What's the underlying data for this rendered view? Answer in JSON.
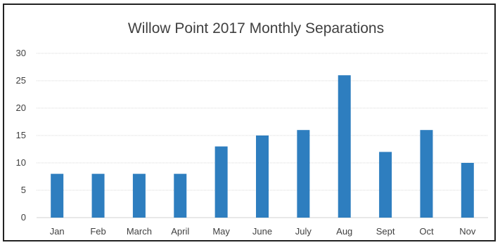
{
  "chart_data": {
    "type": "bar",
    "title": "Willow Point 2017 Monthly Separations",
    "xlabel": "",
    "ylabel": "",
    "categories": [
      "Jan",
      "Feb",
      "March",
      "April",
      "May",
      "June",
      "July",
      "Aug",
      "Sept",
      "Oct",
      "Nov"
    ],
    "values": [
      8,
      8,
      8,
      8,
      13,
      15,
      16,
      26,
      12,
      16,
      10
    ],
    "ylim": [
      0,
      30
    ],
    "yticks": [
      "0",
      "5",
      "10",
      "15",
      "20",
      "25",
      "30"
    ],
    "grid": true,
    "legend": "none",
    "bar_color": "#2e7ebf"
  }
}
